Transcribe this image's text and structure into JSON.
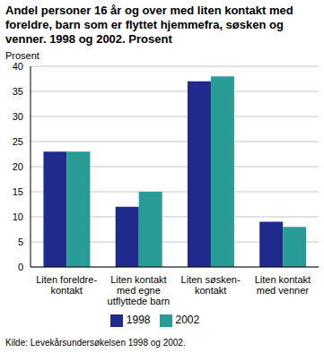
{
  "chart_data": {
    "type": "bar",
    "title": "Andel personer 16 år og over med liten kontakt med foreldre, barn som er flyttet hjemmefra, søsken og venner. 1998 og 2002. Prosent",
    "y_label": "Prosent",
    "source": "Kilde: Levekårsundersøkelsen 1998 og 2002.",
    "categories": [
      "Liten foreldre-\nkontakt",
      "Liten kontakt\nmed egne\nutflyttede barn",
      "Liten søsken-\nkontakt",
      "Liten kontakt\nmed venner"
    ],
    "series": [
      {
        "name": "1998",
        "color": "#1f2a8a",
        "values": [
          23,
          12,
          37,
          9
        ]
      },
      {
        "name": "2002",
        "color": "#2a9c98",
        "values": [
          23,
          15,
          38,
          8
        ]
      }
    ],
    "ylim": [
      0,
      40
    ],
    "yticks": [
      0,
      5,
      10,
      15,
      20,
      25,
      30,
      35,
      40
    ],
    "grid": true,
    "legend": "bottom"
  }
}
